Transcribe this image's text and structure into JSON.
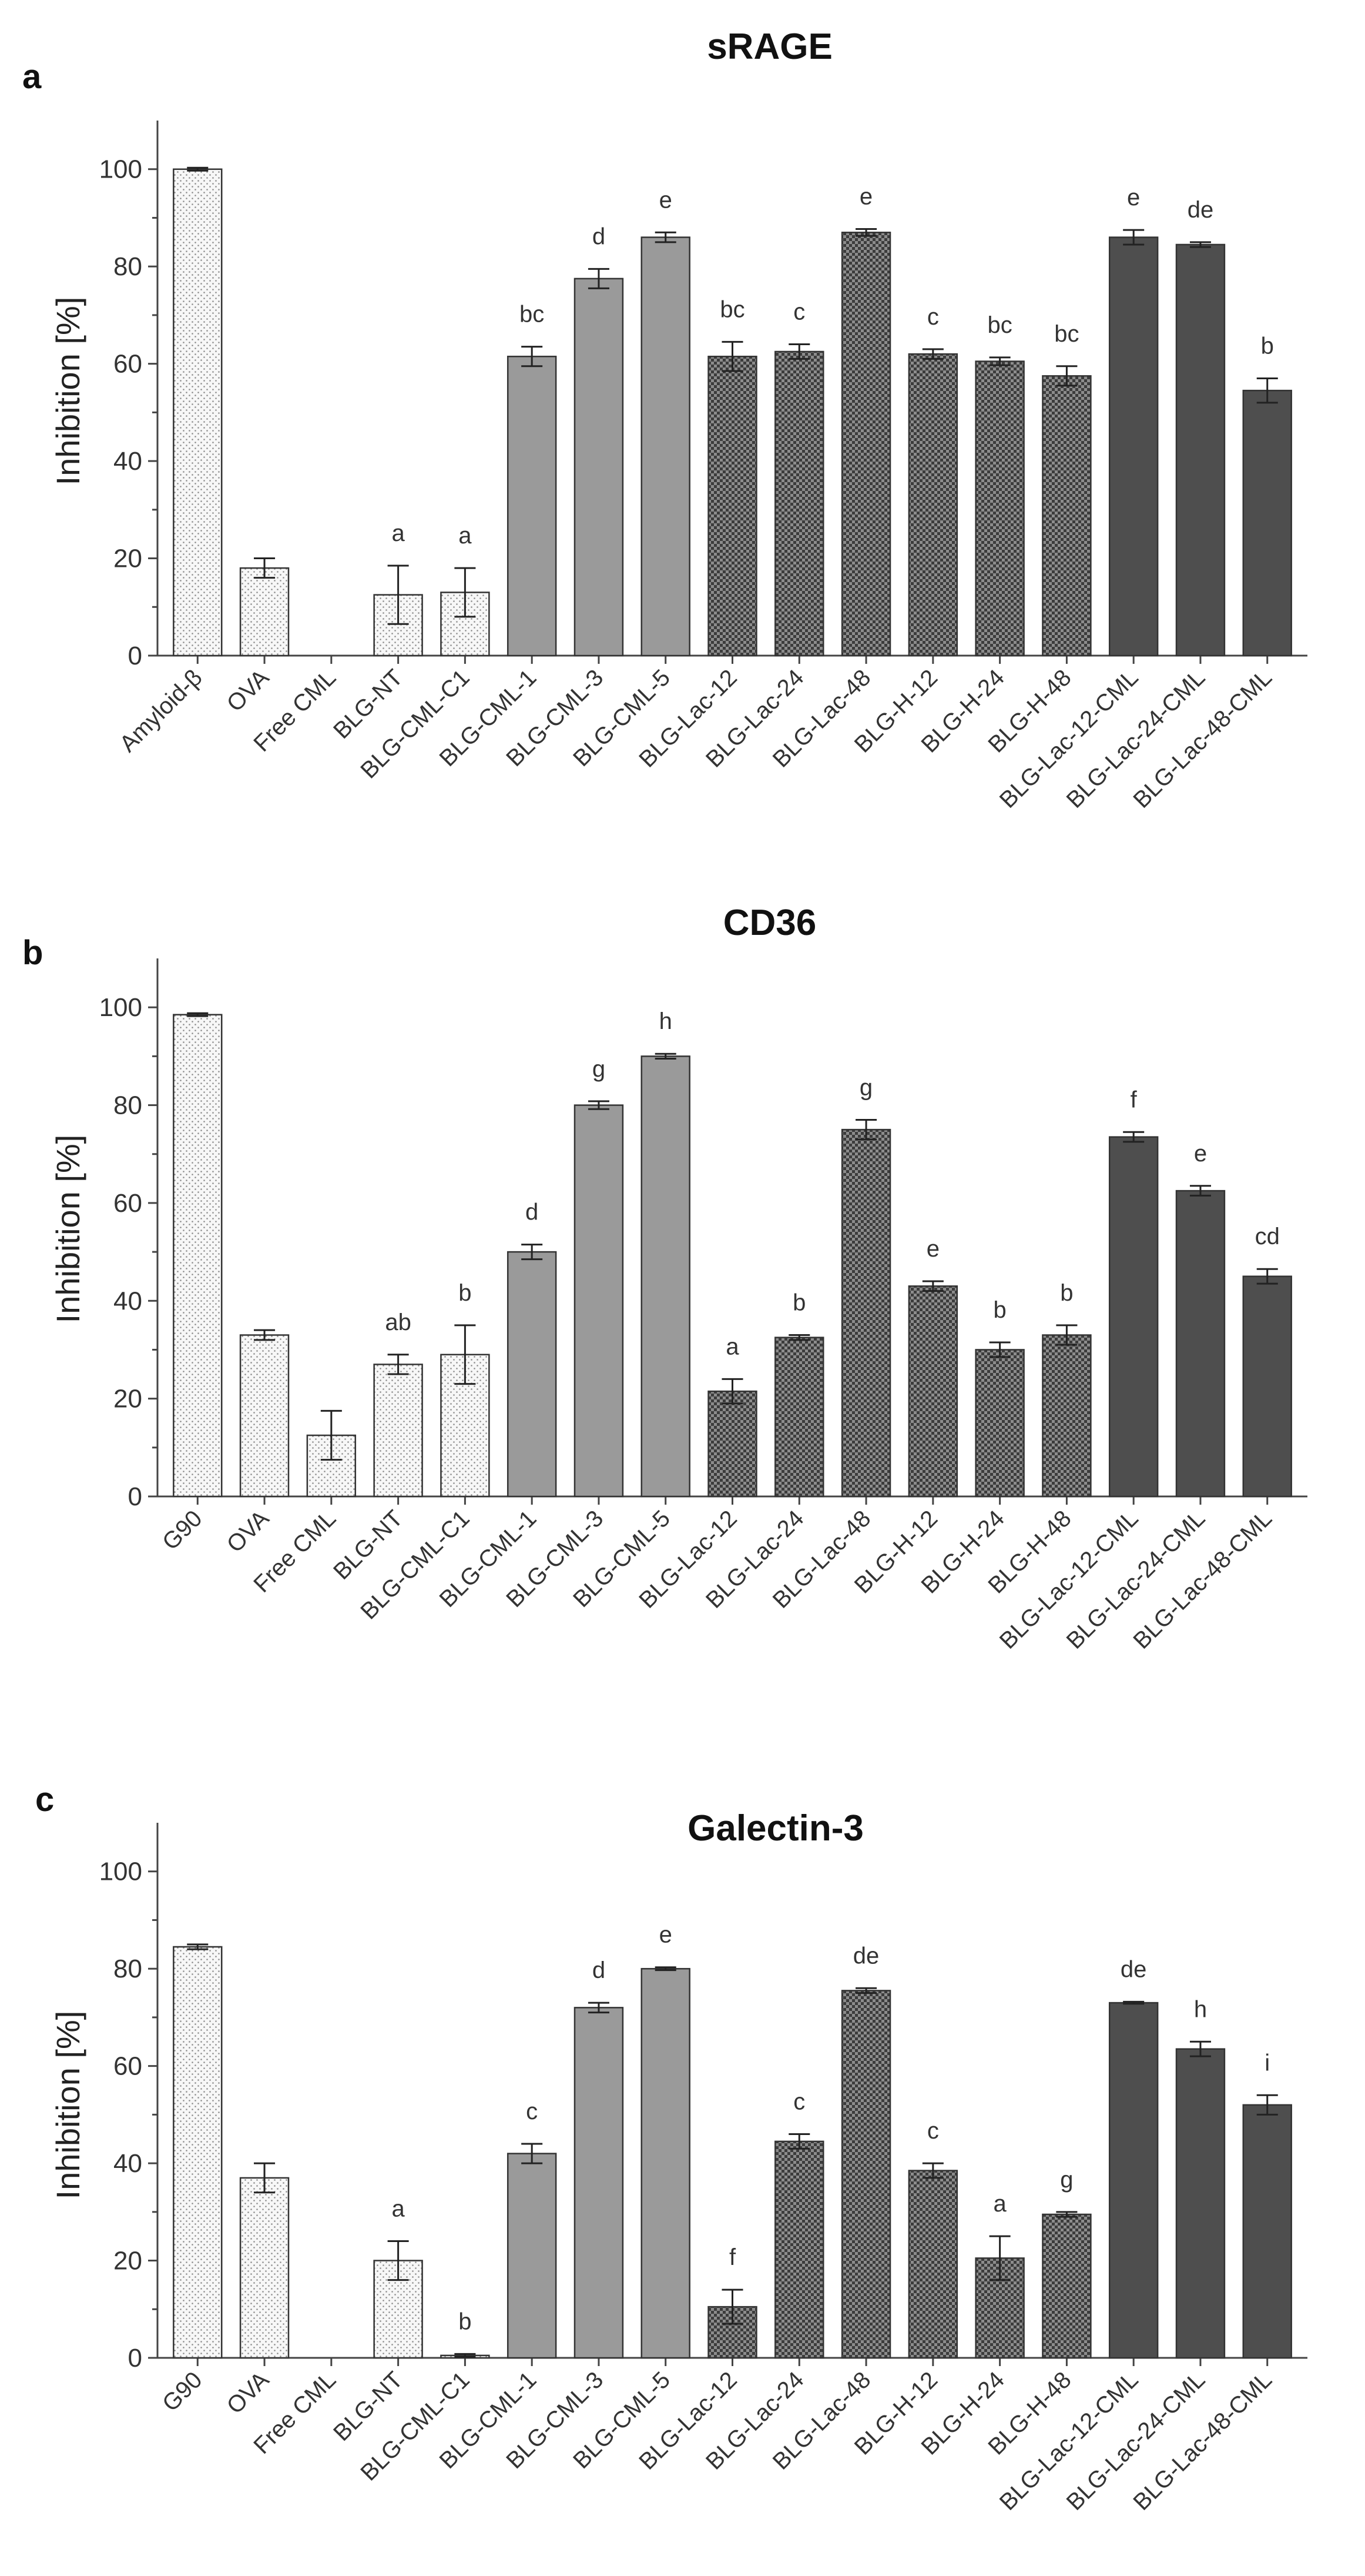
{
  "figure": {
    "styles": {
      "dots": {
        "fill": "#f4f4f4",
        "pattern": "dots"
      },
      "mid": {
        "fill": "#9a9a9a",
        "pattern": "solid"
      },
      "check": {
        "fill": "#777777",
        "pattern": "check"
      },
      "dark": {
        "fill": "#4e4e4e",
        "pattern": "solid"
      }
    }
  },
  "chart_data": [
    {
      "type": "bar",
      "panel": "a",
      "title": "sRAGE",
      "ylabel": "Inhibition [%]",
      "xlabel": "",
      "ylim": [
        0,
        110
      ],
      "yticks": [
        0,
        20,
        40,
        60,
        80,
        100
      ],
      "tick_labels": [
        "0",
        "20",
        "40",
        "60",
        "80",
        "100"
      ],
      "categories": [
        "Amyloid-β",
        "OVA",
        "Free CML",
        "BLG-NT",
        "BLG-CML-C1",
        "BLG-CML-1",
        "BLG-CML-3",
        "BLG-CML-5",
        "BLG-Lac-12",
        "BLG-Lac-24",
        "BLG-Lac-48",
        "BLG-H-12",
        "BLG-H-24",
        "BLG-H-48",
        "BLG-Lac-12-CML",
        "BLG-Lac-24-CML",
        "BLG-Lac-48-CML"
      ],
      "values": [
        100,
        18,
        0,
        12.5,
        13,
        61.5,
        77.5,
        86,
        61.5,
        62.5,
        87,
        62,
        60.5,
        57.5,
        86,
        84.5,
        54.5
      ],
      "errors": [
        0.3,
        2,
        0,
        6,
        5,
        2,
        2,
        1,
        3,
        1.5,
        0.7,
        1,
        0.8,
        2,
        1.5,
        0.5,
        2.5
      ],
      "letters": [
        "",
        "",
        "",
        "a",
        "a",
        "bc",
        "d",
        "e",
        "bc",
        "c",
        "e",
        "c",
        "bc",
        "bc",
        "e",
        "de",
        "b"
      ],
      "bar_styles": [
        "dots",
        "dots",
        "dots",
        "dots",
        "dots",
        "mid",
        "mid",
        "mid",
        "check",
        "check",
        "check",
        "check",
        "check",
        "check",
        "dark",
        "dark",
        "dark"
      ]
    },
    {
      "type": "bar",
      "panel": "b",
      "title": "CD36",
      "ylabel": "Inhibition [%]",
      "xlabel": "",
      "ylim": [
        0,
        110
      ],
      "yticks": [
        0,
        20,
        40,
        60,
        80,
        100
      ],
      "tick_labels": [
        "0",
        "20",
        "40",
        "60",
        "80",
        "100"
      ],
      "categories": [
        "G90",
        "OVA",
        "Free CML",
        "BLG-NT",
        "BLG-CML-C1",
        "BLG-CML-1",
        "BLG-CML-3",
        "BLG-CML-5",
        "BLG-Lac-12",
        "BLG-Lac-24",
        "BLG-Lac-48",
        "BLG-H-12",
        "BLG-H-24",
        "BLG-H-48",
        "BLG-Lac-12-CML",
        "BLG-Lac-24-CML",
        "BLG-Lac-48-CML"
      ],
      "values": [
        98.5,
        33,
        12.5,
        27,
        29,
        50,
        80,
        90,
        21.5,
        32.5,
        75,
        43,
        30,
        33,
        73.5,
        62.5,
        45
      ],
      "errors": [
        0.3,
        1,
        5,
        2,
        6,
        1.5,
        0.8,
        0.5,
        2.5,
        0.5,
        2,
        1,
        1.5,
        2,
        1,
        1,
        1.5
      ],
      "letters": [
        "",
        "",
        "",
        "ab",
        "b",
        "d",
        "g",
        "h",
        "a",
        "b",
        "g",
        "e",
        "b",
        "b",
        "f",
        "e",
        "cd"
      ],
      "bar_styles": [
        "dots",
        "dots",
        "dots",
        "dots",
        "dots",
        "mid",
        "mid",
        "mid",
        "check",
        "check",
        "check",
        "check",
        "check",
        "check",
        "dark",
        "dark",
        "dark"
      ]
    },
    {
      "type": "bar",
      "panel": "c",
      "title": "Galectin-3",
      "ylabel": "Inhibition [%]",
      "xlabel": "",
      "ylim": [
        0,
        110
      ],
      "yticks": [
        0,
        20,
        40,
        60,
        80,
        100
      ],
      "tick_labels": [
        "0",
        "20",
        "40",
        "60",
        "80",
        "100"
      ],
      "categories": [
        "G90",
        "OVA",
        "Free CML",
        "BLG-NT",
        "BLG-CML-C1",
        "BLG-CML-1",
        "BLG-CML-3",
        "BLG-CML-5",
        "BLG-Lac-12",
        "BLG-Lac-24",
        "BLG-Lac-48",
        "BLG-H-12",
        "BLG-H-24",
        "BLG-H-48",
        "BLG-Lac-12-CML",
        "BLG-Lac-24-CML",
        "BLG-Lac-48-CML"
      ],
      "values": [
        84.5,
        37,
        0,
        20,
        0.5,
        42,
        72,
        80,
        10.5,
        44.5,
        75.5,
        38.5,
        20.5,
        29.5,
        73,
        63.5,
        52
      ],
      "errors": [
        0.5,
        3,
        0,
        4,
        0.3,
        2,
        1,
        0.3,
        3.5,
        1.5,
        0.5,
        1.5,
        4.5,
        0.5,
        0.2,
        1.5,
        2
      ],
      "letters": [
        "",
        "",
        "",
        "a",
        "b",
        "c",
        "d",
        "e",
        "f",
        "c",
        "de",
        "c",
        "a",
        "g",
        "de",
        "h",
        "i"
      ],
      "bar_styles": [
        "dots",
        "dots",
        "dots",
        "dots",
        "dots",
        "mid",
        "mid",
        "mid",
        "check",
        "check",
        "check",
        "check",
        "check",
        "check",
        "dark",
        "dark",
        "dark"
      ]
    }
  ]
}
